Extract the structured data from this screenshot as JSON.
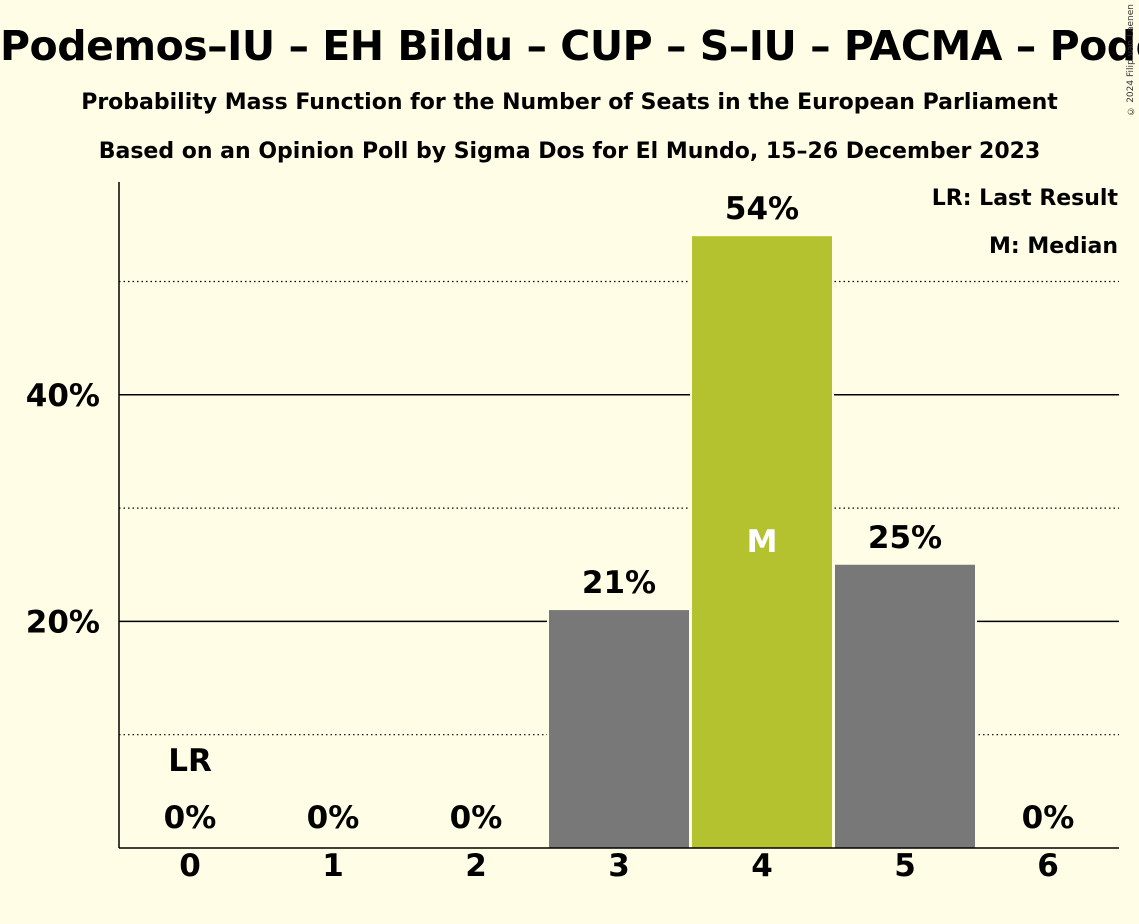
{
  "title": "Podemos–IU – EH Bildu – CUP – S–IU – PACMA – Podemos",
  "subtitle1": "Probability Mass Function for the Number of Seats in the European Parliament",
  "subtitle2": "Based on an Opinion Poll by Sigma Dos for El Mundo, 15–26 December 2023",
  "copyright": "© 2024 Filip van Laenen",
  "legend": {
    "last_result": "LR: Last Result",
    "median": "M: Median"
  },
  "colors": {
    "bar": "#787878",
    "median_bar": "#B5C230",
    "background": "#FFFDE5"
  },
  "chart_data": {
    "type": "bar",
    "categories": [
      "0",
      "1",
      "2",
      "3",
      "4",
      "5",
      "6"
    ],
    "values": [
      0,
      0,
      0,
      21,
      54,
      25,
      0
    ],
    "value_labels": [
      "0%",
      "0%",
      "0%",
      "21%",
      "54%",
      "25%",
      "0%"
    ],
    "median_index": 4,
    "median_marker": "M",
    "last_result_index": 0,
    "last_result_marker": "LR",
    "ylim": [
      0,
      58
    ],
    "y_ticks": [
      {
        "value": 20,
        "label": "20%"
      },
      {
        "value": 40,
        "label": "40%"
      }
    ],
    "minor_gridlines": [
      10,
      30,
      50
    ],
    "grid": true,
    "legend_position": "top-right"
  }
}
